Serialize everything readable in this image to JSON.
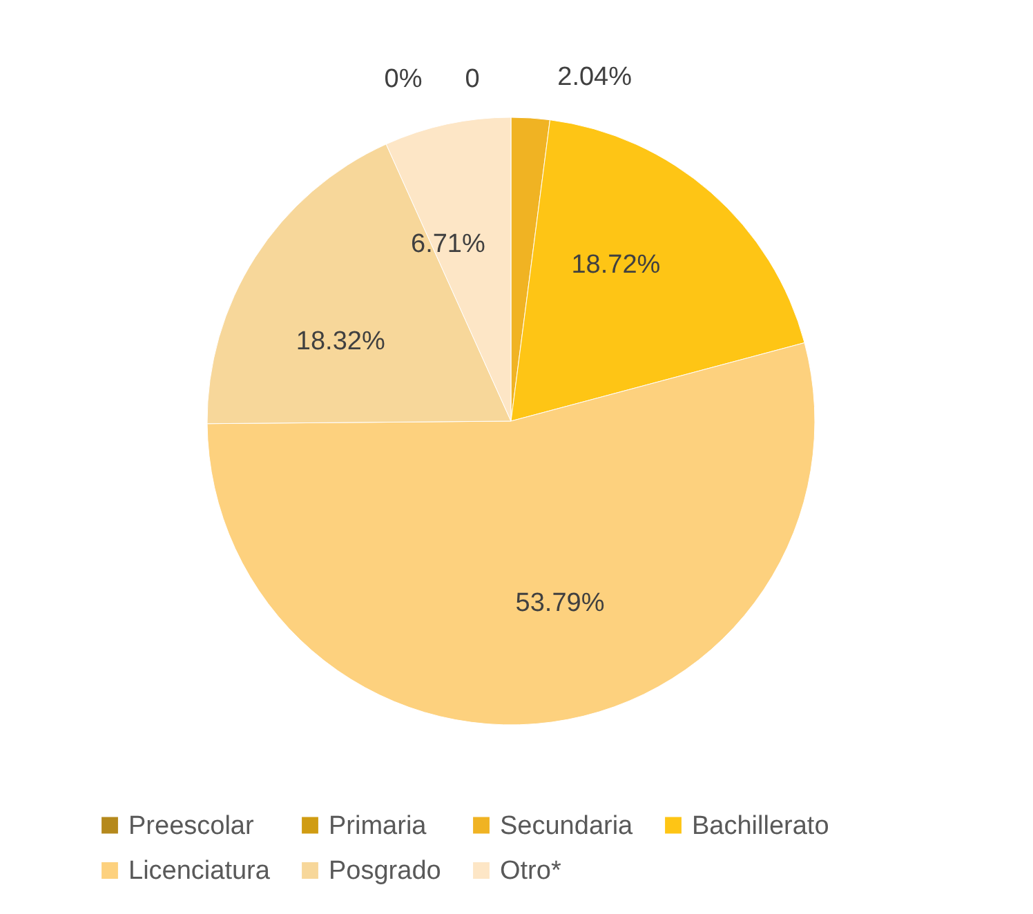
{
  "chart_data": {
    "type": "pie",
    "categories": [
      "Preescolar",
      "Primaria",
      "Secundaria",
      "Bachillerato",
      "Licenciatura",
      "Posgrado",
      "Otro*"
    ],
    "values": [
      0,
      0,
      2.04,
      18.72,
      53.79,
      18.32,
      6.71
    ],
    "value_labels": [
      "0",
      "0%",
      "2.04%",
      "18.72%",
      "53.79%",
      "18.32%",
      "6.71%"
    ],
    "colors": [
      "#b5891c",
      "#d09c12",
      "#f0b323",
      "#fec515",
      "#fdd17e",
      "#f7d79a",
      "#fde6c6"
    ],
    "legend": "bottom"
  }
}
